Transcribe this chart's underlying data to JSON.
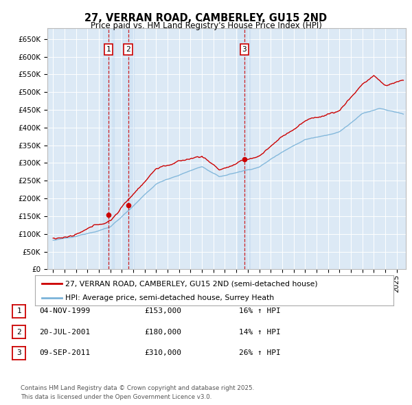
{
  "title": "27, VERRAN ROAD, CAMBERLEY, GU15 2ND",
  "subtitle": "Price paid vs. HM Land Registry's House Price Index (HPI)",
  "plot_bg_color": "#dce9f5",
  "ylim": [
    0,
    680000
  ],
  "yticks": [
    0,
    50000,
    100000,
    150000,
    200000,
    250000,
    300000,
    350000,
    400000,
    450000,
    500000,
    550000,
    600000,
    650000
  ],
  "ytick_labels": [
    "£0",
    "£50K",
    "£100K",
    "£150K",
    "£200K",
    "£250K",
    "£300K",
    "£350K",
    "£400K",
    "£450K",
    "£500K",
    "£550K",
    "£600K",
    "£650K"
  ],
  "hpi_color": "#7ab3d9",
  "price_color": "#cc0000",
  "vline_color": "#cc0000",
  "transactions": [
    {
      "label": "1",
      "date_num": 1999.84,
      "price": 153000
    },
    {
      "label": "2",
      "date_num": 2001.55,
      "price": 180000
    },
    {
      "label": "3",
      "date_num": 2011.69,
      "price": 310000
    }
  ],
  "legend_line1": "27, VERRAN ROAD, CAMBERLEY, GU15 2ND (semi-detached house)",
  "legend_line2": "HPI: Average price, semi-detached house, Surrey Heath",
  "table_rows": [
    [
      "1",
      "04-NOV-1999",
      "£153,000",
      "16% ↑ HPI"
    ],
    [
      "2",
      "20-JUL-2001",
      "£180,000",
      "14% ↑ HPI"
    ],
    [
      "3",
      "09-SEP-2011",
      "£310,000",
      "26% ↑ HPI"
    ]
  ],
  "footnote": "Contains HM Land Registry data © Crown copyright and database right 2025.\nThis data is licensed under the Open Government Licence v3.0.",
  "xlim_start": 1994.5,
  "xlim_end": 2025.8
}
